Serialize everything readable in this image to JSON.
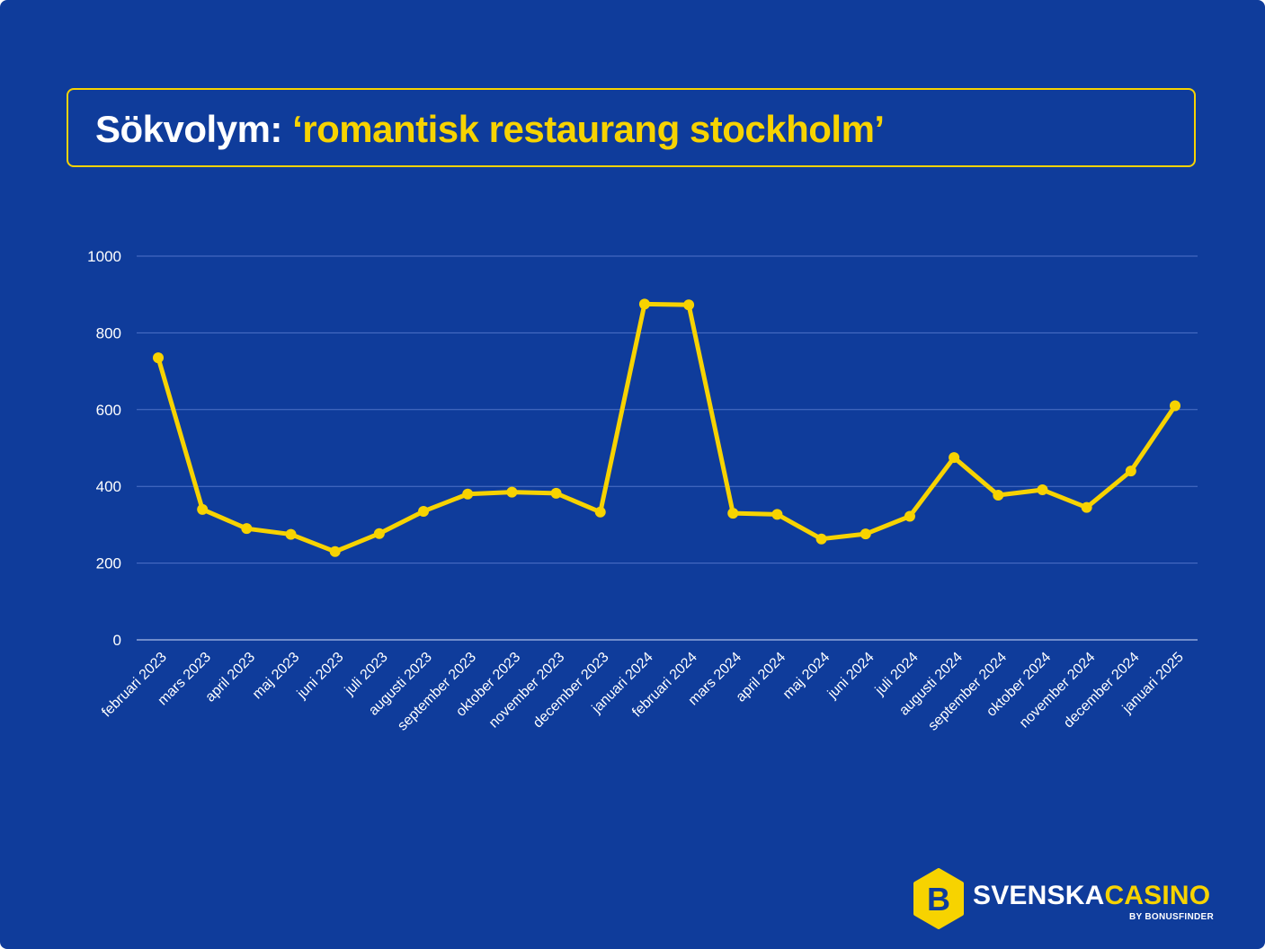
{
  "header": {
    "title_prefix": "Sökvolym:",
    "title_query": "‘romantisk restaurang stockholm’"
  },
  "chart_data": {
    "type": "line",
    "categories": [
      "februari 2023",
      "mars 2023",
      "april 2023",
      "maj 2023",
      "juni 2023",
      "juli 2023",
      "augusti 2023",
      "september 2023",
      "oktober 2023",
      "november 2023",
      "december 2023",
      "januari 2024",
      "februari 2024",
      "mars 2024",
      "april 2024",
      "maj 2024",
      "juni 2024",
      "juli 2024",
      "augusti 2024",
      "september 2024",
      "oktober 2024",
      "november 2024",
      "december 2024",
      "januari 2025"
    ],
    "series": [
      {
        "values": [
          735,
          340,
          290,
          275,
          230,
          277,
          335,
          380,
          385,
          382,
          333,
          875,
          873,
          330,
          327,
          263,
          276,
          322,
          475,
          377,
          391,
          345,
          440,
          610
        ]
      }
    ],
    "ylim": [
      0,
      1000
    ],
    "yticks": [
      0,
      200,
      400,
      600,
      800,
      1000
    ],
    "grid": true,
    "colors": {
      "background": "#0f3c9b",
      "line": "#f7d300",
      "grid": "#4f72c8",
      "text": "#ffffff"
    }
  },
  "logo": {
    "word_white": "SVENSKA",
    "word_yellow": "CASINO",
    "tagline": "BY BONUSFINDER",
    "badge_letter": "B",
    "badge_icon": "bonusfinder-b-icon"
  }
}
